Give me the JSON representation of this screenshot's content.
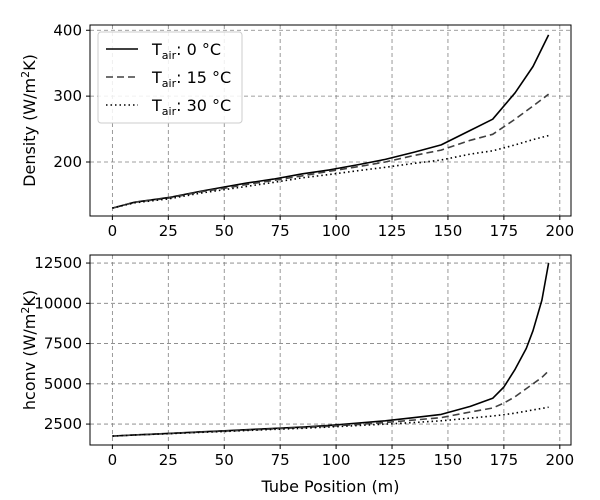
{
  "chart_data": [
    {
      "type": "line",
      "title": "",
      "xlabel": "",
      "ylabel": "Density (W/m",
      "ylabel_sup": "2",
      "ylabel_tail": "K)",
      "xlim": [
        -10,
        205
      ],
      "ylim": [
        118,
        408
      ],
      "xticks": [
        0,
        25,
        50,
        75,
        100,
        125,
        150,
        175,
        200
      ],
      "yticks": [
        200,
        300,
        400
      ],
      "grid": true,
      "legend_position": "upper-left",
      "x": [
        0,
        10,
        25,
        40,
        50,
        60,
        72,
        85,
        97,
        110,
        122,
        135,
        147,
        160,
        170,
        180,
        188,
        195
      ],
      "series": [
        {
          "name": "0",
          "base": "T",
          "sub": "air",
          "unit": "°C",
          "style": "solid",
          "color": "#000000",
          "values": [
            130,
            139,
            146,
            156,
            162,
            168,
            174,
            182,
            188,
            196,
            204,
            215,
            226,
            248,
            265,
            305,
            345,
            393
          ]
        },
        {
          "name": "15",
          "base": "T",
          "sub": "air",
          "unit": "°C",
          "style": "dashed",
          "color": "#404040",
          "values": [
            130,
            139,
            145,
            155,
            160,
            166,
            172,
            179,
            186,
            193,
            200,
            210,
            218,
            233,
            242,
            265,
            285,
            303
          ]
        },
        {
          "name": "30",
          "base": "T",
          "sub": "air",
          "unit": "°C",
          "style": "dotted",
          "color": "#000000",
          "values": [
            130,
            138,
            144,
            153,
            158,
            163,
            169,
            176,
            181,
            187,
            192,
            198,
            203,
            212,
            217,
            226,
            234,
            240
          ]
        }
      ]
    },
    {
      "type": "line",
      "title": "",
      "xlabel": "Tube Position (m)",
      "ylabel": "hconv (W/m",
      "ylabel_sup": "2",
      "ylabel_tail": "K)",
      "xlim": [
        -10,
        205
      ],
      "ylim": [
        1200,
        13000
      ],
      "xticks": [
        0,
        25,
        50,
        75,
        100,
        125,
        150,
        175,
        200
      ],
      "yticks": [
        2500,
        5000,
        7500,
        10000,
        12500
      ],
      "grid": true,
      "x": [
        0,
        10,
        25,
        40,
        50,
        60,
        72,
        85,
        97,
        110,
        122,
        135,
        147,
        160,
        170,
        175,
        180,
        185,
        188,
        192,
        195
      ],
      "series": [
        {
          "name": "0",
          "style": "solid",
          "color": "#000000",
          "values": [
            1750,
            1830,
            1920,
            2020,
            2080,
            2150,
            2230,
            2320,
            2420,
            2560,
            2700,
            2900,
            3100,
            3600,
            4100,
            4800,
            5900,
            7200,
            8300,
            10200,
            12500
          ]
        },
        {
          "name": "15",
          "style": "dashed",
          "color": "#404040",
          "values": [
            1750,
            1820,
            1910,
            2000,
            2060,
            2120,
            2200,
            2280,
            2370,
            2480,
            2600,
            2750,
            2900,
            3250,
            3500,
            3800,
            4200,
            4700,
            5000,
            5400,
            5800
          ]
        },
        {
          "name": "30",
          "style": "dotted",
          "color": "#000000",
          "values": [
            1750,
            1820,
            1900,
            1990,
            2040,
            2100,
            2170,
            2240,
            2320,
            2410,
            2500,
            2600,
            2700,
            2870,
            3000,
            3080,
            3180,
            3300,
            3380,
            3470,
            3550
          ]
        }
      ]
    }
  ]
}
